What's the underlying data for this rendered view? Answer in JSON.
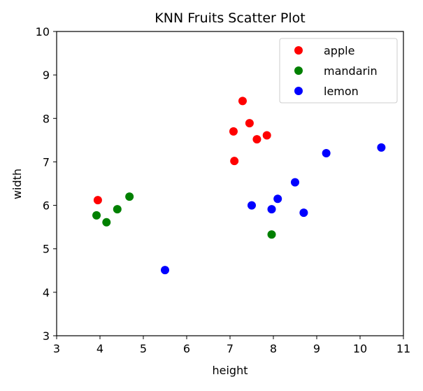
{
  "chart_data": {
    "type": "scatter",
    "title": "KNN Fruits Scatter Plot",
    "xlabel": "height",
    "ylabel": "width",
    "xlim": [
      3,
      11
    ],
    "ylim": [
      3,
      10
    ],
    "xticks": [
      "3",
      "4",
      "5",
      "6",
      "7",
      "8",
      "9",
      "10",
      "11"
    ],
    "yticks": [
      "3",
      "4",
      "5",
      "6",
      "7",
      "8",
      "9",
      "10"
    ],
    "grid": false,
    "legend_position": "top-right",
    "series": [
      {
        "name": "apple",
        "color": "#ff0000",
        "points": [
          {
            "x": 3.95,
            "y": 6.12
          },
          {
            "x": 7.08,
            "y": 7.7
          },
          {
            "x": 7.29,
            "y": 8.4
          },
          {
            "x": 7.45,
            "y": 7.89
          },
          {
            "x": 7.62,
            "y": 7.52
          },
          {
            "x": 7.85,
            "y": 7.61
          },
          {
            "x": 7.1,
            "y": 7.02
          }
        ]
      },
      {
        "name": "mandarin",
        "color": "#008000",
        "points": [
          {
            "x": 3.92,
            "y": 5.77
          },
          {
            "x": 4.15,
            "y": 5.61
          },
          {
            "x": 4.4,
            "y": 5.91
          },
          {
            "x": 4.68,
            "y": 6.2
          },
          {
            "x": 7.96,
            "y": 5.33
          }
        ]
      },
      {
        "name": "lemon",
        "color": "#0000ff",
        "points": [
          {
            "x": 5.5,
            "y": 4.51
          },
          {
            "x": 7.5,
            "y": 6.0
          },
          {
            "x": 7.96,
            "y": 5.91
          },
          {
            "x": 8.1,
            "y": 6.15
          },
          {
            "x": 8.5,
            "y": 6.53
          },
          {
            "x": 8.7,
            "y": 5.83
          },
          {
            "x": 9.22,
            "y": 7.2
          },
          {
            "x": 10.49,
            "y": 7.33
          }
        ]
      }
    ]
  }
}
